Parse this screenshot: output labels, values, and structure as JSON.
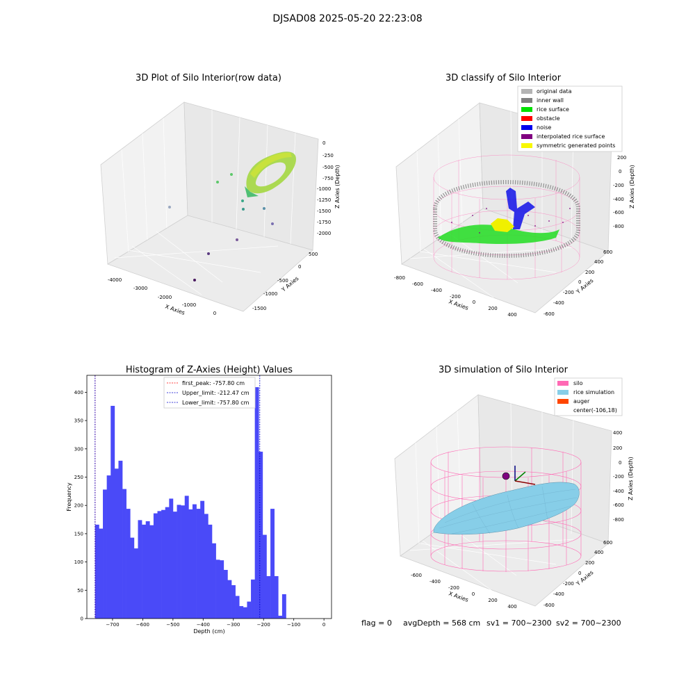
{
  "figure_title": "DJSAD08 2025-05-20 22:23:08",
  "status_line": {
    "flag": "flag = 0",
    "avg_depth": "avgDepth = 568 cm",
    "sv1": "sv1 = 700~2300",
    "sv2": "sv2 = 700~2300"
  },
  "chart_data": [
    {
      "type": "scatter3d",
      "title": "3D Plot of Silo Interior(row data)",
      "xlabel": "X Axies",
      "ylabel": "Y Axies",
      "zlabel": "Z Axies (Depth)",
      "x_ticks": [
        "-4000",
        "-3000",
        "-2000",
        "-1000",
        "0"
      ],
      "y_ticks": [
        "500",
        "0",
        "-500",
        "-1000",
        "-1500"
      ],
      "z_ticks": [
        "0",
        "-250",
        "-500",
        "-750",
        "-1000",
        "-1250",
        "-1500",
        "-1750",
        "-2000"
      ],
      "colors": {
        "high": "#c8e23c",
        "mid": "#5cc86a",
        "low": "#3a9a8c",
        "deep": "#5a2a70"
      }
    },
    {
      "type": "scatter3d",
      "title": "3D classify of Silo Interior",
      "xlabel": "X Axies",
      "ylabel": "Y Axies",
      "zlabel": "Z Axies (Depth)",
      "x_ticks": [
        "-800",
        "-600",
        "-400",
        "-200",
        "0",
        "200",
        "400"
      ],
      "y_ticks": [
        "600",
        "400",
        "200",
        "0",
        "-200",
        "-400",
        "-600"
      ],
      "z_ticks": [
        "200",
        "0",
        "-200",
        "-400",
        "-600",
        "-800"
      ],
      "legend": [
        {
          "label": "original data",
          "color": "#b4b4b4"
        },
        {
          "label": "inner wall",
          "color": "#808080"
        },
        {
          "label": "rice surface",
          "color": "#00e000"
        },
        {
          "label": "obstacle",
          "color": "#ff0000"
        },
        {
          "label": "noise",
          "color": "#0000ee"
        },
        {
          "label": "interpolated rice surface",
          "color": "#800080"
        },
        {
          "label": "symmetric generated points",
          "color": "#f8f800"
        }
      ]
    },
    {
      "type": "bar",
      "title": "Histogram of Z-Axies (Height) Values",
      "xlabel": "Depth (cm)",
      "ylabel": "Frequency",
      "bar_color": "#4a4af8",
      "xlim": [
        -785,
        25
      ],
      "ylim": [
        0,
        430
      ],
      "bin_start": -757.8,
      "bin_width": 12.9,
      "values": [
        166,
        159,
        228,
        253,
        376,
        265,
        279,
        229,
        194,
        143,
        124,
        174,
        166,
        172,
        165,
        186,
        190,
        192,
        197,
        212,
        189,
        201,
        200,
        217,
        193,
        202,
        194,
        208,
        185,
        166,
        133,
        104,
        103,
        86,
        68,
        59,
        40,
        22,
        20,
        30,
        69,
        409,
        295,
        148,
        75,
        194,
        75,
        5,
        43
      ],
      "x_ticks": [
        -700,
        -600,
        -500,
        -400,
        -300,
        -200,
        -100,
        0
      ],
      "x_tick_labels": [
        "−700",
        "−600",
        "−500",
        "−400",
        "−300",
        "−200",
        "−100",
        "0"
      ],
      "y_ticks": [
        0,
        50,
        100,
        150,
        200,
        250,
        300,
        350,
        400
      ],
      "y_tick_labels": [
        "0",
        "50",
        "100",
        "150",
        "200",
        "250",
        "300",
        "350",
        "400"
      ],
      "vlines": [
        {
          "value": -757.8,
          "color": "#ff0000",
          "label": "first_peak: -757.80 cm"
        },
        {
          "value": -212.47,
          "color": "#0000cc",
          "label": "Upper_limit: -212.47 cm"
        },
        {
          "value": -757.8,
          "color": "#0000cc",
          "label": "Lower_limit: -757.80 cm"
        }
      ]
    },
    {
      "type": "surface3d",
      "title": "3D simulation of Silo Interior",
      "xlabel": "X Axies",
      "ylabel": "Y Axies",
      "zlabel": "Z Axies (Depth)",
      "x_ticks": [
        "-600",
        "-400",
        "-200",
        "0",
        "200",
        "400"
      ],
      "y_ticks": [
        "600",
        "400",
        "200",
        "0",
        "-200",
        "-400",
        "-600"
      ],
      "z_ticks": [
        "400",
        "200",
        "0",
        "-200",
        "-400",
        "-600",
        "-800"
      ],
      "legend": [
        {
          "label": "silo",
          "color": "#ff69b4"
        },
        {
          "label": "rice simulation",
          "color": "#87cee8"
        },
        {
          "label": "auger",
          "color": "#ff4500"
        },
        {
          "label": "center(-106,18)",
          "color": "none"
        }
      ]
    }
  ]
}
